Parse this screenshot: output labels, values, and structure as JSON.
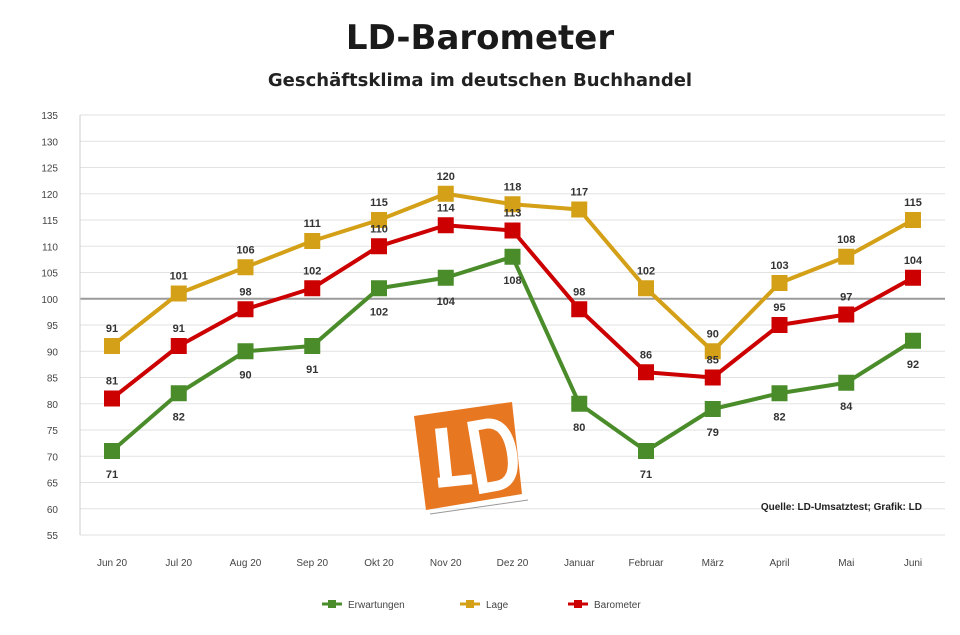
{
  "chart_data": {
    "type": "line",
    "title": "LD-Barometer",
    "subtitle": "Geschäftsklima im deutschen Buchhandel",
    "categories": [
      "Jun 20",
      "Jul 20",
      "Aug 20",
      "Sep 20",
      "Okt 20",
      "Nov 20",
      "Dez 20",
      "Januar",
      "Februar",
      "März",
      "April",
      "Mai",
      "Juni"
    ],
    "ylim": [
      55,
      135
    ],
    "yticks": [
      55,
      60,
      65,
      70,
      75,
      80,
      85,
      90,
      95,
      100,
      105,
      110,
      115,
      120,
      125,
      130,
      135
    ],
    "baseline": 100,
    "grid": true,
    "legend_position": "bottom",
    "source": "Quelle: LD-Umsatztest; Grafik: LD",
    "series": [
      {
        "name": "Erwartungen",
        "color": "#4a8c2a",
        "values": [
          71,
          82,
          90,
          91,
          102,
          104,
          108,
          80,
          71,
          79,
          82,
          84,
          92
        ]
      },
      {
        "name": "Lage",
        "color": "#d4a017",
        "values": [
          91,
          101,
          106,
          111,
          115,
          120,
          118,
          117,
          102,
          90,
          103,
          108,
          115
        ]
      },
      {
        "name": "Barometer",
        "color": "#cc0000",
        "values": [
          81,
          91,
          98,
          102,
          110,
          114,
          113,
          98,
          86,
          85,
          95,
          97,
          104
        ]
      }
    ]
  },
  "logo": {
    "text": "LD",
    "color": "#e87722"
  }
}
